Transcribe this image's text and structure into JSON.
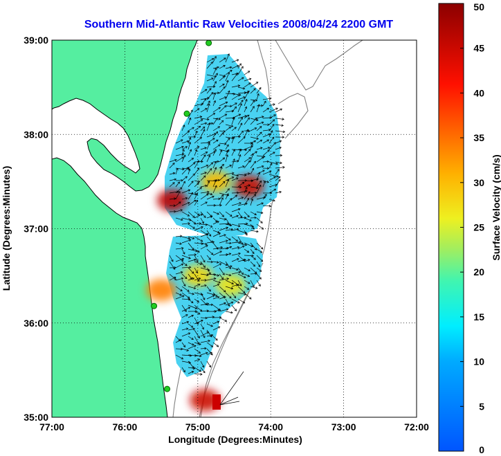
{
  "chart_data": {
    "type": "heatmap",
    "title": "Southern Mid-Atlantic Raw Velocities 2008/04/24 2200 GMT",
    "xlabel": "Longitude (Degrees:Minutes)",
    "ylabel": "Latitude (Degrees:Minutes)",
    "xlim": [
      -77,
      -72
    ],
    "ylim": [
      35,
      39
    ],
    "xticks": [
      {
        "value": -77,
        "label": "77:00"
      },
      {
        "value": -76,
        "label": "76:00"
      },
      {
        "value": -75,
        "label": "75:00"
      },
      {
        "value": -74,
        "label": "74:00"
      },
      {
        "value": -73,
        "label": "73:00"
      },
      {
        "value": -72,
        "label": "72:00"
      }
    ],
    "yticks": [
      {
        "value": 35,
        "label": "35:00"
      },
      {
        "value": 36,
        "label": "36:00"
      },
      {
        "value": 37,
        "label": "37:00"
      },
      {
        "value": 38,
        "label": "38:00"
      },
      {
        "value": 39,
        "label": "39:00"
      }
    ],
    "grid": true,
    "colorbar": {
      "label": "Surface Velocity (cm/s)",
      "min": 0,
      "max": 50,
      "ticks": [
        {
          "value": 0,
          "label": "0"
        },
        {
          "value": 5,
          "label": "5"
        },
        {
          "value": 10,
          "label": "10"
        },
        {
          "value": 15,
          "label": "15"
        },
        {
          "value": 20,
          "label": "20"
        },
        {
          "value": 25,
          "label": "25"
        },
        {
          "value": 30,
          "label": "30"
        },
        {
          "value": 35,
          "label": "35"
        },
        {
          "value": 40,
          "label": "40"
        },
        {
          "value": 45,
          "label": "45"
        },
        {
          "value": 50,
          "label": "50"
        }
      ]
    },
    "hotspots": [
      {
        "lon": -74.3,
        "lat": 37.45,
        "speed": 45
      },
      {
        "lon": -75.35,
        "lat": 37.3,
        "speed": 46
      },
      {
        "lon": -74.75,
        "lat": 37.5,
        "speed": 30
      },
      {
        "lon": -75.0,
        "lat": 36.5,
        "speed": 28
      },
      {
        "lon": -74.55,
        "lat": 36.4,
        "speed": 27
      },
      {
        "lon": -75.5,
        "lat": 36.35,
        "speed": 34
      },
      {
        "lon": -74.9,
        "lat": 35.18,
        "speed": 45
      }
    ],
    "stations": [
      {
        "lon": -74.85,
        "lat": 38.97
      },
      {
        "lon": -75.15,
        "lat": 38.22
      },
      {
        "lon": -75.6,
        "lat": 36.18
      },
      {
        "lon": -75.42,
        "lat": 35.3
      }
    ],
    "colors": {
      "land": "#55eea0",
      "coast": "#000000",
      "bathymetry": "#808080",
      "station": "#22cc22"
    }
  }
}
